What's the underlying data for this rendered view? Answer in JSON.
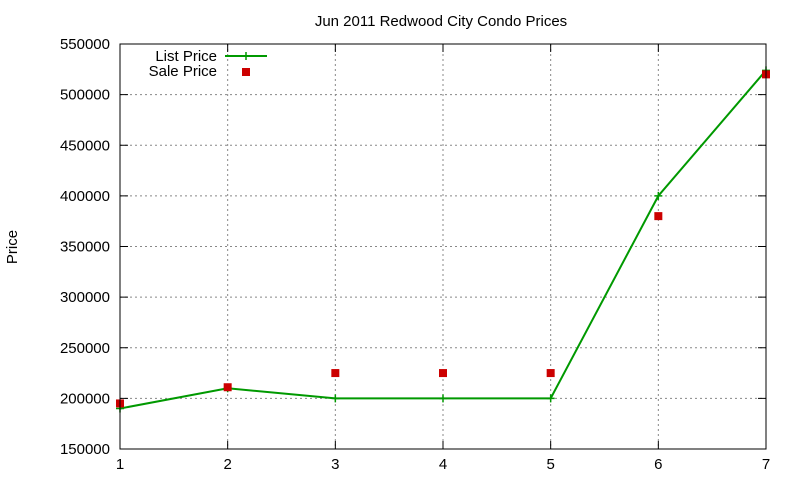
{
  "chart_data": {
    "type": "line",
    "title": "Jun 2011 Redwood City Condo Prices",
    "xlabel": "",
    "ylabel": "Price",
    "x": [
      1,
      2,
      3,
      4,
      5,
      6,
      7
    ],
    "xlim": [
      1,
      7
    ],
    "ylim": [
      150000,
      550000
    ],
    "xticks": [
      1,
      2,
      3,
      4,
      5,
      6,
      7
    ],
    "yticks": [
      150000,
      200000,
      250000,
      300000,
      350000,
      400000,
      450000,
      500000,
      550000
    ],
    "grid": true,
    "legend_position": "top-left",
    "series": [
      {
        "name": "List Price",
        "style": "line-with-plus-markers",
        "color": "#009900",
        "values": [
          190000,
          210000,
          200000,
          200000,
          200000,
          400000,
          524000
        ]
      },
      {
        "name": "Sale Price",
        "style": "square-markers",
        "color": "#cc0000",
        "values": [
          195000,
          211000,
          225000,
          225000,
          225000,
          380000,
          520000
        ]
      }
    ]
  }
}
